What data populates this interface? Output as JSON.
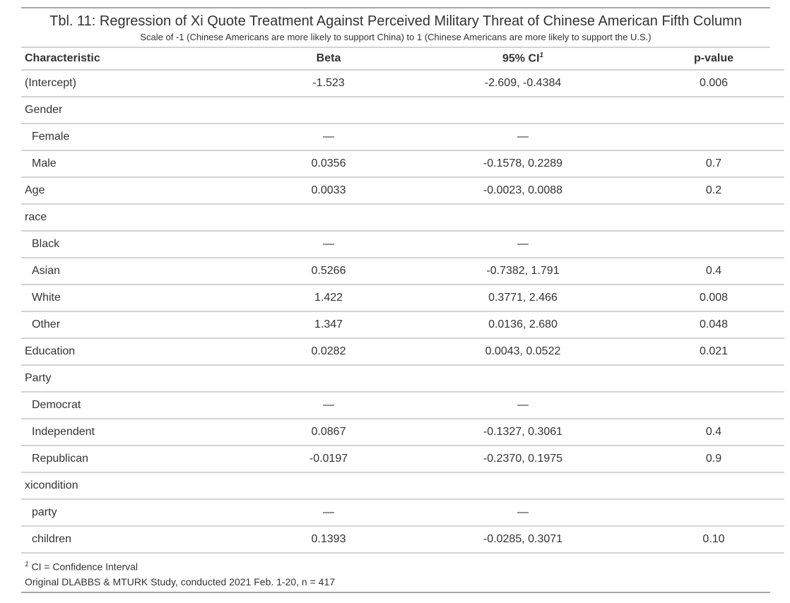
{
  "title": "Tbl. 11: Regression of Xi Quote Treatment Against Perceived Military Threat of Chinese American Fifth Column",
  "subtitle": "Scale of -1 (Chinese Americans are more likely to support China) to 1 (Chinese Americans are more likely to support the U.S.)",
  "headers": {
    "characteristic": "Characteristic",
    "beta": "Beta",
    "ci": "95% CI",
    "ci_mark": "1",
    "pvalue": "p-value"
  },
  "rows": [
    {
      "label": "(Intercept)",
      "beta": "-1.523",
      "ci": "-2.609, -0.4384",
      "p": "0.006"
    },
    {
      "label": "Gender",
      "beta": "",
      "ci": "",
      "p": ""
    },
    {
      "label": "Female",
      "beta": "—",
      "ci": "—",
      "p": ""
    },
    {
      "label": "Male",
      "beta": "0.0356",
      "ci": "-0.1578, 0.2289",
      "p": "0.7"
    },
    {
      "label": "Age",
      "beta": "0.0033",
      "ci": "-0.0023, 0.0088",
      "p": "0.2"
    },
    {
      "label": "race",
      "beta": "",
      "ci": "",
      "p": ""
    },
    {
      "label": "Black",
      "beta": "—",
      "ci": "—",
      "p": ""
    },
    {
      "label": "Asian",
      "beta": "0.5266",
      "ci": "-0.7382, 1.791",
      "p": "0.4"
    },
    {
      "label": "White",
      "beta": "1.422",
      "ci": "0.3771, 2.466",
      "p": "0.008"
    },
    {
      "label": "Other",
      "beta": "1.347",
      "ci": "0.0136, 2.680",
      "p": "0.048"
    },
    {
      "label": "Education",
      "beta": "0.0282",
      "ci": "0.0043, 0.0522",
      "p": "0.021"
    },
    {
      "label": "Party",
      "beta": "",
      "ci": "",
      "p": ""
    },
    {
      "label": "Democrat",
      "beta": "—",
      "ci": "—",
      "p": ""
    },
    {
      "label": "Independent",
      "beta": "0.0867",
      "ci": "-0.1327, 0.3061",
      "p": "0.4"
    },
    {
      "label": "Republican",
      "beta": "-0.0197",
      "ci": "-0.2370, 0.1975",
      "p": "0.9"
    },
    {
      "label": "xicondition",
      "beta": "",
      "ci": "",
      "p": ""
    },
    {
      "label": "party",
      "beta": "—",
      "ci": "—",
      "p": ""
    },
    {
      "label": "children",
      "beta": "0.1393",
      "ci": "-0.0285, 0.3071",
      "p": "0.10"
    }
  ],
  "footnote": {
    "mark": "1",
    "text": "CI = Confidence Interval"
  },
  "source": "Original DLABBS & MTURK Study, conducted 2021 Feb. 1-20, n = 417"
}
